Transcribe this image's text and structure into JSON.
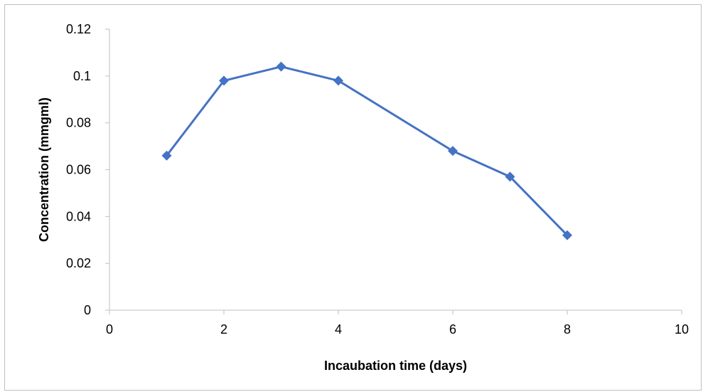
{
  "chart_data": {
    "type": "scatter",
    "title": "",
    "xlabel": "Incaubation time (days)",
    "ylabel": "Concentration (mmgml)",
    "xlim": [
      0,
      10
    ],
    "ylim": [
      0,
      0.12
    ],
    "x_ticks": [
      0,
      2,
      4,
      6,
      8,
      10
    ],
    "y_ticks": [
      0,
      0.02,
      0.04,
      0.06,
      0.08,
      0.1,
      0.12
    ],
    "x_tick_labels": [
      "0",
      "2",
      "4",
      "6",
      "8",
      "10"
    ],
    "y_tick_labels": [
      "0",
      "0.02",
      "0.04",
      "0.06",
      "0.08",
      "0.1",
      "0.12"
    ],
    "grid": false,
    "marker": "diamond",
    "line_color": "#4472C4",
    "series": [
      {
        "x": [
          1,
          2,
          3,
          4,
          6,
          7,
          8
        ],
        "y": [
          0.066,
          0.098,
          0.104,
          0.098,
          0.068,
          0.057,
          0.032
        ]
      }
    ]
  }
}
